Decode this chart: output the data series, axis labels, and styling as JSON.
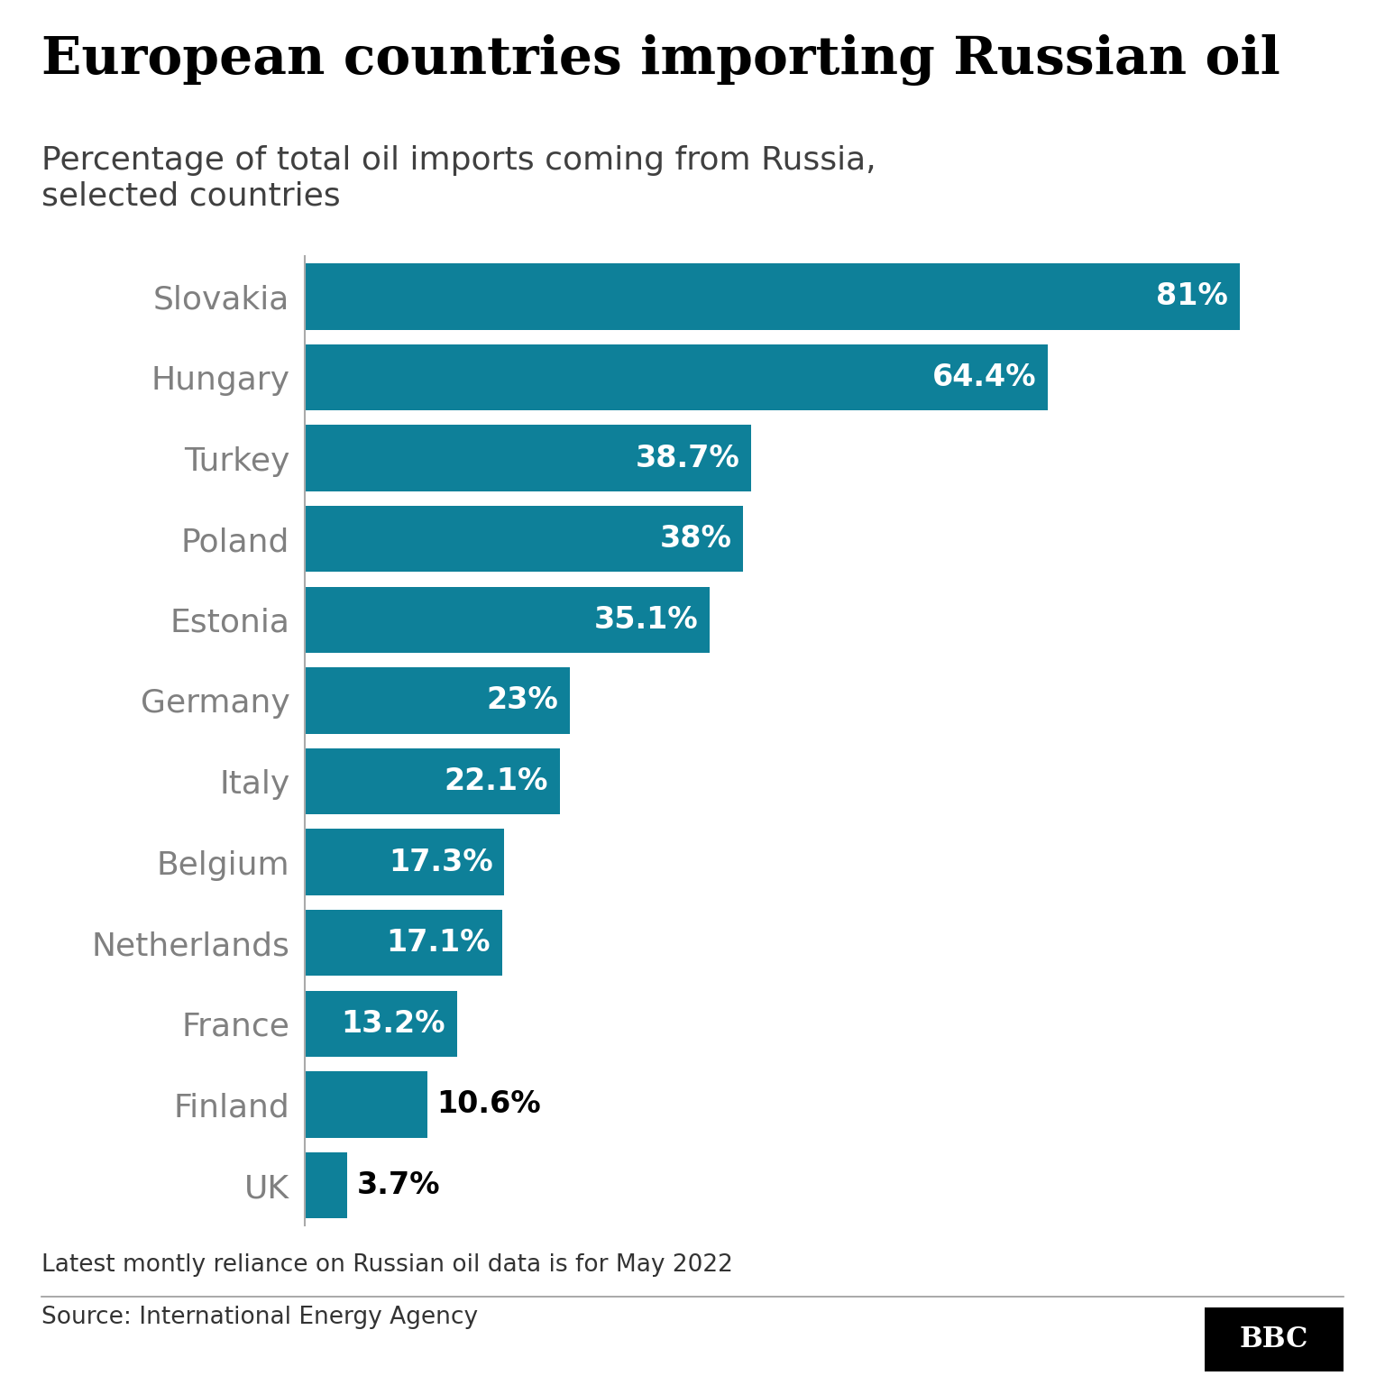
{
  "title": "European countries importing Russian oil",
  "subtitle": "Percentage of total oil imports coming from Russia,\nselected countries",
  "countries": [
    "Slovakia",
    "Hungary",
    "Turkey",
    "Poland",
    "Estonia",
    "Germany",
    "Italy",
    "Belgium",
    "Netherlands",
    "France",
    "Finland",
    "UK"
  ],
  "values": [
    81.0,
    64.4,
    38.7,
    38.0,
    35.1,
    23.0,
    22.1,
    17.3,
    17.1,
    13.2,
    10.6,
    3.7
  ],
  "labels": [
    "81%",
    "64.4%",
    "38.7%",
    "38%",
    "35.1%",
    "23%",
    "22.1%",
    "17.3%",
    "17.1%",
    "13.2%",
    "10.6%",
    "3.7%"
  ],
  "bar_color": "#0e8099",
  "label_color_inside": "#ffffff",
  "label_color_outside": "#000000",
  "title_fontsize": 42,
  "subtitle_fontsize": 26,
  "country_label_fontsize": 26,
  "bar_label_fontsize": 24,
  "footer_note": "Latest montly reliance on Russian oil data is for May 2022",
  "source_text": "Source: International Energy Agency",
  "bbc_text": "BBC",
  "background_color": "#ffffff",
  "text_color_title": "#000000",
  "text_color_subtitle": "#404040",
  "text_color_country": "#808080",
  "threshold_inside": 13.0,
  "xlim": [
    0,
    90
  ],
  "bar_height": 0.82
}
